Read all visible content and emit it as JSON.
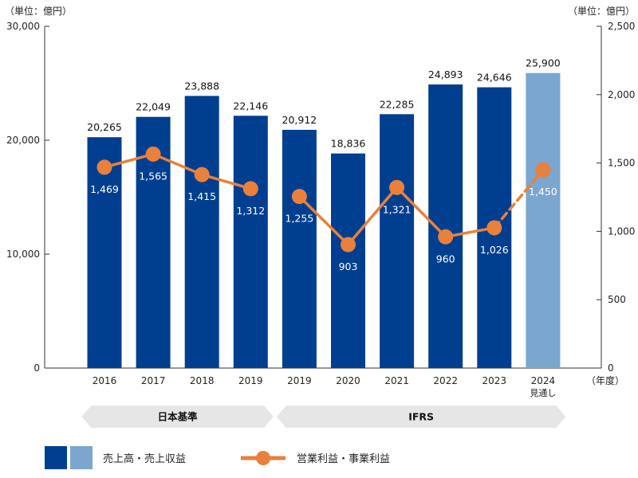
{
  "chart_data": {
    "type": "bar",
    "categories": [
      "2016",
      "2017",
      "2018",
      "2019",
      "2019",
      "2020",
      "2021",
      "2022",
      "2023",
      "2024"
    ],
    "category_sublabels": [
      "",
      "",
      "",
      "",
      "",
      "",
      "",
      "",
      "",
      "見通し"
    ],
    "x_unit": "（年度）",
    "y_left": {
      "unit": "（単位：億円）",
      "range": [
        0,
        30000
      ],
      "ticks": [
        "0",
        "10,000",
        "20,000",
        "30,000"
      ],
      "tick_values": [
        0,
        10000,
        20000,
        30000
      ]
    },
    "y_right": {
      "unit": "（単位：億円）",
      "range": [
        0,
        2500
      ],
      "ticks": [
        "0",
        "500",
        "1,000",
        "1,500",
        "2,000",
        "2,500"
      ],
      "tick_values": [
        0,
        500,
        1000,
        1500,
        2000,
        2500
      ]
    },
    "series": [
      {
        "name": "売上高・売上収益",
        "type": "bar",
        "axis": "left",
        "values": [
          20265,
          22049,
          23888,
          22146,
          20912,
          18836,
          22285,
          24893,
          24646,
          25900
        ],
        "labels": [
          "20,265",
          "22,049",
          "23,888",
          "22,146",
          "20,912",
          "18,836",
          "22,285",
          "24,893",
          "24,646",
          "25,900"
        ],
        "colors": [
          "#003f8f",
          "#7aa6cf"
        ],
        "forecast_index": 9
      },
      {
        "name": "営業利益・事業利益",
        "type": "line",
        "axis": "right",
        "values": [
          1469,
          1565,
          1415,
          1312,
          1255,
          903,
          1321,
          960,
          1026,
          1450
        ],
        "labels": [
          "1,469",
          "1,565",
          "1,415",
          "1,312",
          "1,255",
          "903",
          "1,321",
          "960",
          "1,026",
          "1,450"
        ],
        "color": "#e9803c",
        "breaks_after_index": 3,
        "dashed_from_index": 8
      }
    ],
    "standards": [
      {
        "label": "日本基準",
        "from_index": 0,
        "to_index": 3
      },
      {
        "label": "IFRS",
        "from_index": 4,
        "to_index": 9
      }
    ],
    "legend": {
      "position": "bottom",
      "bar_label": "売上高・売上収益",
      "line_label": "営業利益・事業利益"
    },
    "grid": false
  }
}
